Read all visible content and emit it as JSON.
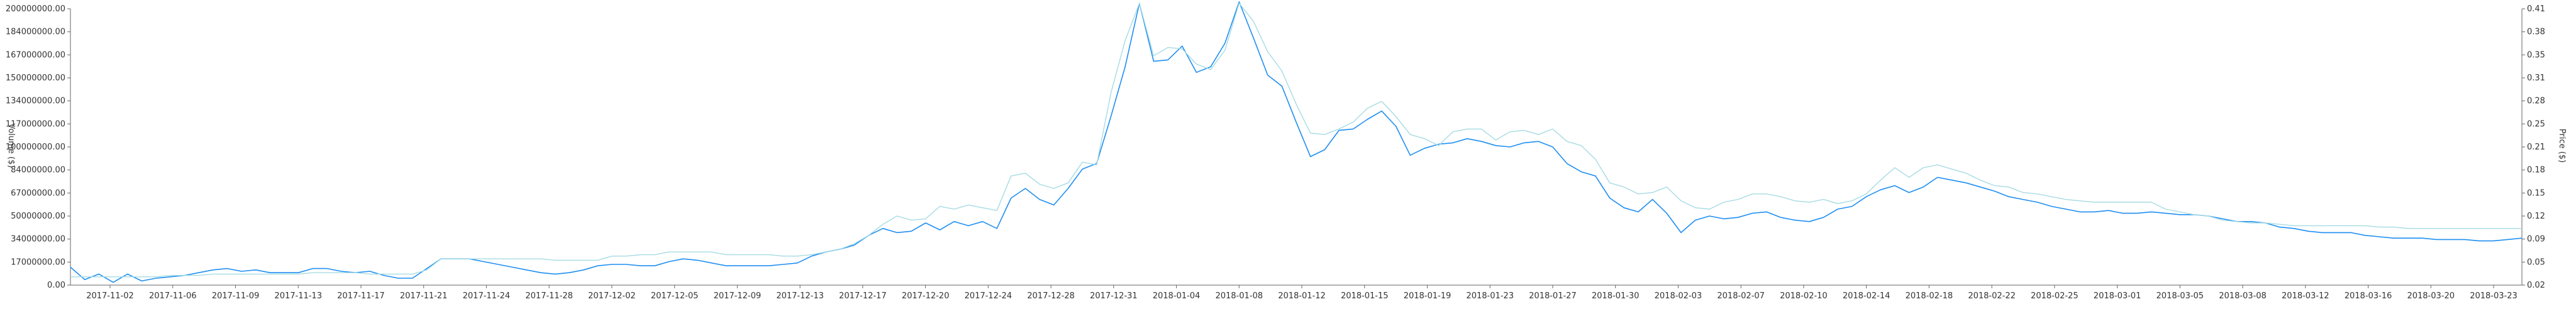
{
  "chart_data": {
    "type": "line",
    "title": "",
    "ylabel_left": "Volume ($)",
    "ylabel_right": "Price ($)",
    "x_tick_labels": [
      "2017-11-02",
      "2017-11-06",
      "2017-11-09",
      "2017-11-13",
      "2017-11-17",
      "2017-11-21",
      "2017-11-24",
      "2017-11-28",
      "2017-12-02",
      "2017-12-05",
      "2017-12-09",
      "2017-12-13",
      "2017-12-17",
      "2017-12-20",
      "2017-12-24",
      "2017-12-28",
      "2017-12-31",
      "2018-01-04",
      "2018-01-08",
      "2018-01-12",
      "2018-01-15",
      "2018-01-19",
      "2018-01-23",
      "2018-01-27",
      "2018-01-30",
      "2018-02-03",
      "2018-02-07",
      "2018-02-10",
      "2018-02-14",
      "2018-02-18",
      "2018-02-22",
      "2018-02-25",
      "2018-03-01",
      "2018-03-05",
      "2018-03-08",
      "2018-03-12",
      "2018-03-16",
      "2018-03-20",
      "2018-03-23"
    ],
    "y_left_ticks": [
      "0.00",
      "17000000.00",
      "34000000.00",
      "50000000.00",
      "67000000.00",
      "84000000.00",
      "100000000.00",
      "117000000.00",
      "134000000.00",
      "150000000.00",
      "167000000.00",
      "184000000.00",
      "200000000.00"
    ],
    "y_right_ticks": [
      "0.02",
      "0.05",
      "0.09",
      "0.12",
      "0.15",
      "0.18",
      "0.21",
      "0.25",
      "0.28",
      "0.31",
      "0.35",
      "0.38",
      "0.41"
    ],
    "y_left_range": [
      0,
      200000000
    ],
    "y_right_range": [
      0.02,
      0.41
    ],
    "grid": false,
    "series": [
      {
        "axis": "left",
        "color": "#1f8ef1",
        "values": [
          13,
          4,
          8,
          2,
          8,
          3,
          5,
          6,
          7,
          9,
          11,
          12,
          10,
          11,
          9,
          9,
          9,
          12,
          12,
          10,
          9,
          10,
          7,
          5,
          5,
          12,
          19,
          19,
          19,
          17,
          15,
          13,
          11,
          9,
          8,
          9,
          11,
          14,
          15,
          15,
          14,
          14,
          17,
          19,
          18,
          16,
          14,
          14,
          14,
          14,
          15,
          16,
          21,
          24,
          26,
          29,
          36,
          41,
          38,
          39,
          45,
          40,
          46,
          43,
          46,
          41,
          63,
          70,
          62,
          58,
          70,
          84,
          88,
          122,
          158,
          204,
          162,
          163,
          173,
          154,
          158,
          175,
          205,
          179,
          152,
          144,
          118,
          93,
          98,
          112,
          113,
          120,
          126,
          115,
          94,
          99,
          102,
          103,
          106,
          104,
          101,
          100,
          103,
          104,
          100,
          88,
          82,
          79,
          63,
          56,
          53,
          62,
          52,
          38,
          47,
          50,
          48,
          49,
          52,
          53,
          49,
          47,
          46,
          49,
          55,
          57,
          64,
          69,
          72,
          67,
          71,
          78,
          76,
          74,
          71,
          68,
          64,
          62,
          60,
          57,
          55,
          53,
          53,
          54,
          52,
          52,
          53,
          52,
          51,
          51,
          50,
          48,
          46,
          46,
          45,
          42,
          41,
          39,
          38,
          38,
          38,
          36,
          35,
          34,
          34,
          34,
          33,
          33,
          33,
          32,
          32,
          33,
          34
        ],
        "values_note": "scaled as % of 100M units"
      },
      {
        "axis": "left",
        "color": "#a6dbe3",
        "values": [
          6,
          6,
          6,
          6,
          6,
          6,
          6,
          7,
          7,
          7,
          8,
          8,
          8,
          8,
          8,
          8,
          8,
          9,
          9,
          9,
          9,
          8,
          8,
          8,
          8,
          11,
          19,
          19,
          19,
          19,
          19,
          19,
          19,
          19,
          18,
          18,
          18,
          18,
          21,
          21,
          22,
          22,
          24,
          24,
          24,
          24,
          22,
          22,
          22,
          22,
          21,
          21,
          22,
          24,
          26,
          30,
          36,
          44,
          50,
          47,
          48,
          57,
          55,
          58,
          56,
          54,
          79,
          81,
          73,
          70,
          74,
          89,
          87,
          139,
          177,
          204,
          166,
          172,
          171,
          160,
          156,
          170,
          204,
          191,
          169,
          155,
          131,
          110,
          109,
          113,
          118,
          128,
          133,
          122,
          109,
          106,
          101,
          111,
          113,
          113,
          105,
          111,
          112,
          109,
          113,
          104,
          101,
          91,
          74,
          71,
          66,
          67,
          71,
          61,
          56,
          55,
          60,
          62,
          66,
          66,
          64,
          61,
          60,
          62,
          59,
          61,
          66,
          76,
          85,
          78,
          85,
          87,
          84,
          81,
          76,
          72,
          71,
          67,
          66,
          64,
          62,
          61,
          60,
          60,
          60,
          60,
          60,
          55,
          53,
          51,
          50,
          47,
          46,
          45,
          45,
          44,
          43,
          43,
          43,
          43,
          43,
          43,
          42,
          42,
          41,
          41,
          41,
          41,
          41,
          41,
          41,
          41,
          41
        ]
      }
    ]
  }
}
